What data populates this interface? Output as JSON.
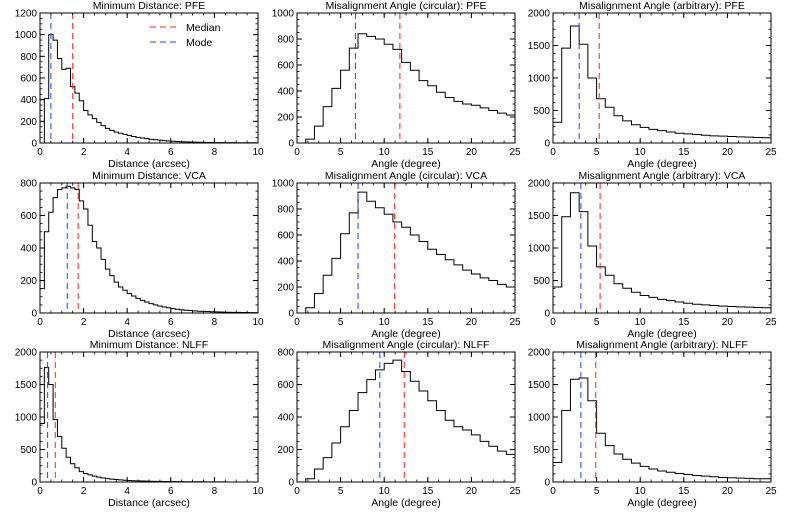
{
  "figure": {
    "legend": {
      "median_label": "Median",
      "mode_label": "Mode",
      "median_color": "#ff2020",
      "mode_color": "#2040ff",
      "placement": "top-right of first panel"
    }
  },
  "chart_data": [
    {
      "type": "histogram",
      "title": "Minimum Distance: PFE",
      "xlabel": "Distance (arcsec)",
      "ylabel": "",
      "xlim": [
        0,
        10
      ],
      "ylim": [
        0,
        1200
      ],
      "xticks": [
        0,
        2,
        4,
        6,
        8,
        10
      ],
      "yticks": [
        0,
        200,
        400,
        600,
        800,
        1000,
        1200
      ],
      "x_start": 0.2,
      "bin_width": 0.2,
      "values": [
        410,
        1000,
        950,
        780,
        680,
        690,
        520,
        460,
        390,
        300,
        260,
        225,
        190,
        160,
        135,
        115,
        100,
        90,
        80,
        70,
        60,
        52,
        46,
        40,
        34,
        30,
        26,
        22,
        19,
        16,
        14,
        12,
        10,
        9,
        8,
        7,
        6,
        5,
        5,
        4,
        4,
        3,
        3,
        3,
        2,
        2,
        2,
        2,
        2
      ],
      "median": 1.5,
      "mode": 0.5
    },
    {
      "type": "histogram",
      "title": "Misalignment Angle (circular): PFE",
      "xlabel": "Angle (degree)",
      "ylabel": "",
      "xlim": [
        0,
        25
      ],
      "ylim": [
        0,
        1000
      ],
      "xticks": [
        0,
        5,
        10,
        15,
        20,
        25
      ],
      "yticks": [
        0,
        200,
        400,
        600,
        800,
        1000
      ],
      "x_start": 0,
      "bin_width": 1,
      "values": [
        0,
        30,
        130,
        280,
        420,
        560,
        730,
        840,
        820,
        800,
        760,
        720,
        620,
        560,
        480,
        440,
        390,
        350,
        320,
        300,
        290,
        270,
        250,
        230,
        215
      ],
      "median": 11.8,
      "mode": 6.7
    },
    {
      "type": "histogram",
      "title": "Misalignment Angle (arbitrary): PFE",
      "xlabel": "Angle (degree)",
      "ylabel": "",
      "xlim": [
        0,
        25
      ],
      "ylim": [
        0,
        2000
      ],
      "xticks": [
        0,
        5,
        10,
        15,
        20,
        25
      ],
      "yticks": [
        0,
        500,
        1000,
        1500,
        2000
      ],
      "x_start": 0,
      "bin_width": 1,
      "values": [
        320,
        1460,
        1800,
        1520,
        1000,
        680,
        550,
        420,
        340,
        280,
        240,
        210,
        190,
        170,
        150,
        140,
        130,
        120,
        110,
        105,
        100,
        95,
        90,
        85,
        80
      ],
      "median": 5.3,
      "mode": 3.0
    },
    {
      "type": "histogram",
      "title": "Minimum Distance: VCA",
      "xlabel": "Distance (arcsec)",
      "ylabel": "",
      "xlim": [
        0,
        10
      ],
      "ylim": [
        0,
        800
      ],
      "xticks": [
        0,
        2,
        4,
        6,
        8,
        10
      ],
      "yticks": [
        0,
        200,
        400,
        600,
        800
      ],
      "x_start": 0,
      "bin_width": 0.2,
      "values": [
        150,
        500,
        620,
        710,
        760,
        770,
        780,
        770,
        760,
        690,
        640,
        540,
        440,
        400,
        330,
        270,
        230,
        190,
        160,
        140,
        120,
        105,
        90,
        78,
        68,
        58,
        50,
        43,
        37,
        32,
        27,
        23,
        20,
        17,
        15,
        13,
        11,
        10,
        9,
        8,
        7,
        6,
        5,
        5,
        4,
        4,
        3,
        3,
        2,
        2
      ],
      "median": 1.75,
      "mode": 1.25
    },
    {
      "type": "histogram",
      "title": "Misalignment Angle (circular): VCA",
      "xlabel": "Angle (degree)",
      "ylabel": "",
      "xlim": [
        0,
        25
      ],
      "ylim": [
        0,
        1000
      ],
      "xticks": [
        0,
        5,
        10,
        15,
        20,
        25
      ],
      "yticks": [
        0,
        200,
        400,
        600,
        800,
        1000
      ],
      "x_start": 0,
      "bin_width": 1,
      "values": [
        0,
        40,
        150,
        290,
        420,
        610,
        770,
        930,
        860,
        810,
        760,
        700,
        660,
        600,
        550,
        490,
        450,
        410,
        370,
        330,
        300,
        270,
        250,
        220,
        200
      ],
      "median": 11.2,
      "mode": 7.0
    },
    {
      "type": "histogram",
      "title": "Misalignment Angle (arbitrary): VCA",
      "xlabel": "Angle (degree)",
      "ylabel": "",
      "xlim": [
        0,
        25
      ],
      "ylim": [
        0,
        2000
      ],
      "xticks": [
        0,
        5,
        10,
        15,
        20,
        25
      ],
      "yticks": [
        0,
        500,
        1000,
        1500,
        2000
      ],
      "x_start": 0,
      "bin_width": 1,
      "values": [
        400,
        1480,
        1850,
        1560,
        1030,
        710,
        580,
        450,
        380,
        320,
        270,
        240,
        210,
        190,
        170,
        150,
        135,
        125,
        115,
        105,
        100,
        95,
        90,
        85,
        80
      ],
      "median": 5.4,
      "mode": 3.2
    },
    {
      "type": "histogram",
      "title": "Minimum Distance: NLFF",
      "xlabel": "Distance (arcsec)",
      "ylabel": "",
      "xlim": [
        0,
        10
      ],
      "ylim": [
        0,
        2000
      ],
      "xticks": [
        0,
        2,
        4,
        6,
        8,
        10
      ],
      "yticks": [
        0,
        500,
        1000,
        1500,
        2000
      ],
      "x_start": 0,
      "bin_width": 0.2,
      "values": [
        900,
        1760,
        1500,
        960,
        700,
        520,
        380,
        280,
        220,
        160,
        130,
        110,
        90,
        75,
        62,
        52,
        44,
        38,
        32,
        27,
        23,
        20,
        17,
        15,
        13,
        11,
        10,
        9,
        8,
        7,
        6,
        5,
        5,
        4,
        4,
        3,
        3,
        3,
        2,
        2,
        2,
        2,
        2,
        1,
        1,
        1,
        1,
        1,
        1,
        1
      ],
      "median": 0.7,
      "mode": 0.35
    },
    {
      "type": "histogram",
      "title": "Misalignment Angle (circular): NLFF",
      "xlabel": "Angle (degree)",
      "ylabel": "",
      "xlim": [
        0,
        25
      ],
      "ylim": [
        0,
        800
      ],
      "xticks": [
        0,
        5,
        10,
        15,
        20,
        25
      ],
      "yticks": [
        0,
        200,
        400,
        600,
        800
      ],
      "x_start": 0,
      "bin_width": 1,
      "values": [
        0,
        20,
        80,
        150,
        240,
        340,
        440,
        550,
        630,
        690,
        730,
        750,
        680,
        620,
        560,
        500,
        440,
        380,
        340,
        320,
        290,
        250,
        220,
        190,
        170
      ],
      "median": 12.3,
      "mode": 9.5
    },
    {
      "type": "histogram",
      "title": "Misalignment Angle (arbitrary): NLFF",
      "xlabel": "Angle (degree)",
      "ylabel": "",
      "xlim": [
        0,
        25
      ],
      "ylim": [
        0,
        2000
      ],
      "xticks": [
        0,
        5,
        10,
        15,
        20,
        25
      ],
      "yticks": [
        0,
        500,
        1000,
        1500,
        2000
      ],
      "x_start": 0,
      "bin_width": 1,
      "values": [
        300,
        1100,
        1580,
        1600,
        1250,
        750,
        560,
        430,
        350,
        290,
        240,
        200,
        170,
        150,
        130,
        115,
        100,
        90,
        80,
        70,
        65,
        60,
        55,
        50,
        50
      ],
      "median": 4.9,
      "mode": 3.2
    }
  ]
}
